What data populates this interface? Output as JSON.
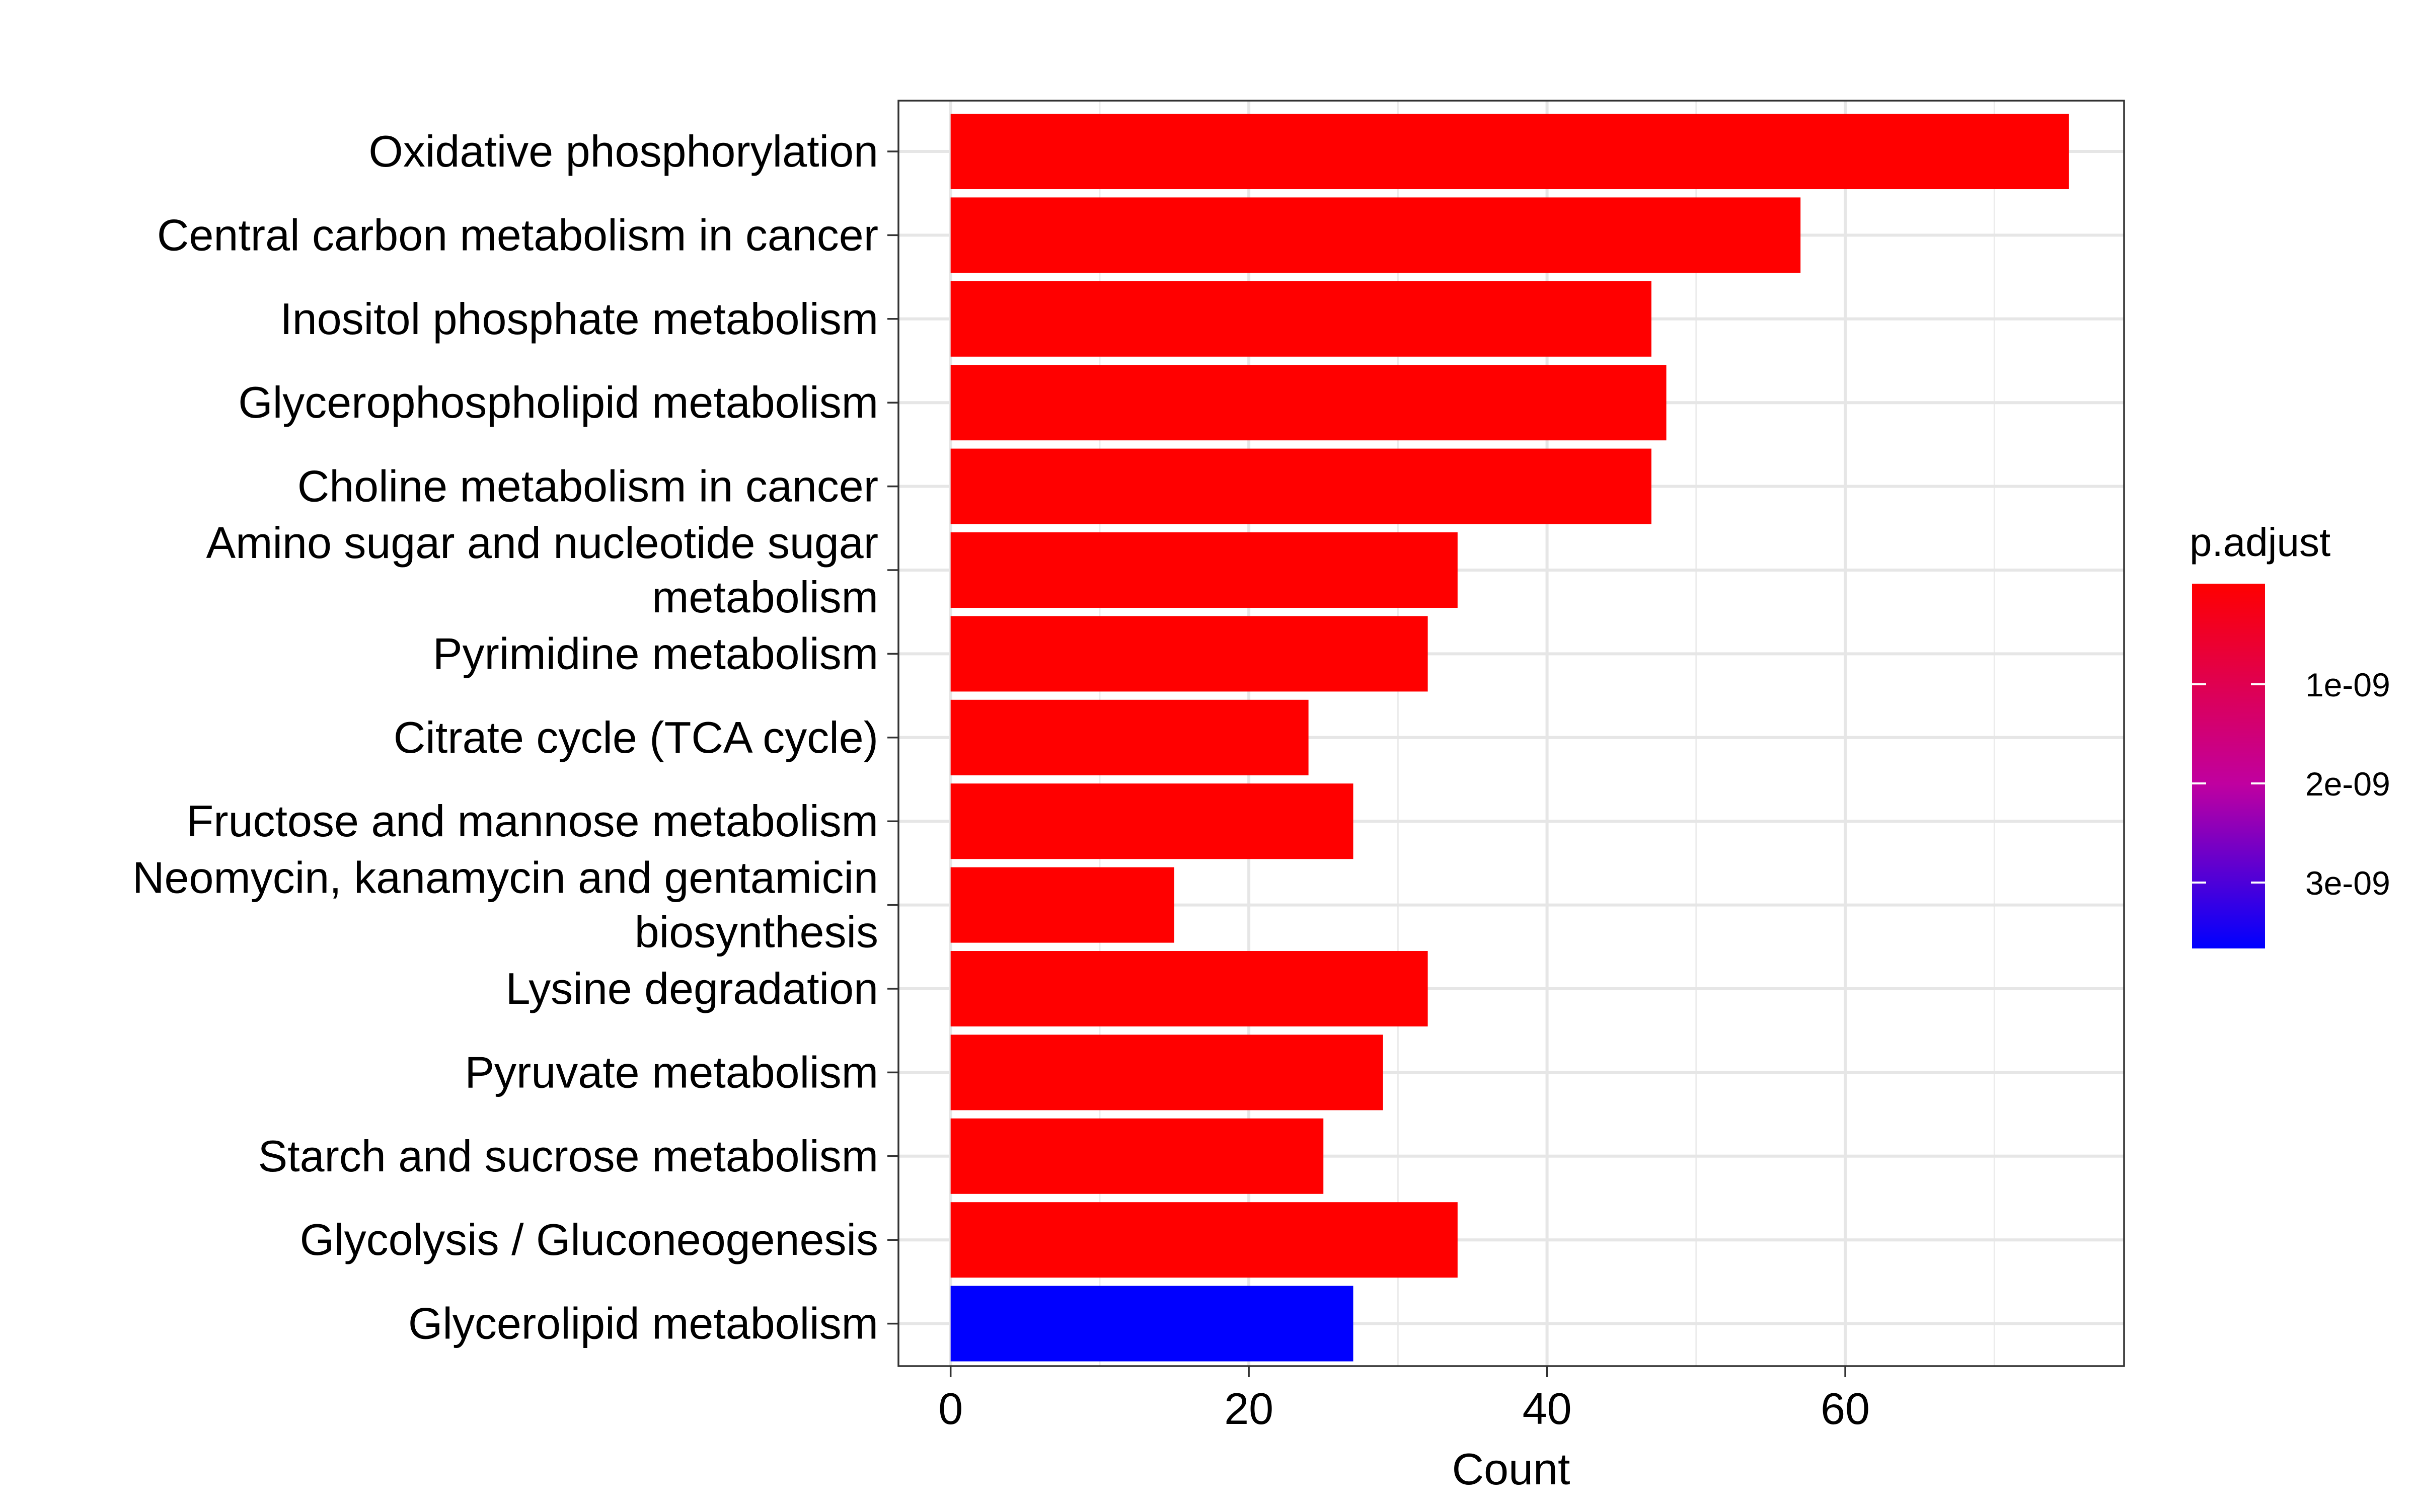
{
  "chart_data": {
    "type": "bar",
    "orientation": "horizontal",
    "categories": [
      "Oxidative phosphorylation",
      "Central carbon metabolism in cancer",
      "Inositol phosphate metabolism",
      "Glycerophospholipid metabolism",
      "Choline metabolism in cancer",
      "Amino sugar and nucleotide sugar metabolism",
      "Pyrimidine metabolism",
      "Citrate cycle (TCA cycle)",
      "Fructose and mannose metabolism",
      "Neomycin, kanamycin and gentamicin biosynthesis",
      "Lysine degradation",
      "Pyruvate metabolism",
      "Starch and sucrose metabolism",
      "Glycolysis / Gluconeogenesis",
      "Glycerolipid metabolism"
    ],
    "category_label_lines": [
      [
        "Oxidative phosphorylation"
      ],
      [
        "Central carbon metabolism in cancer"
      ],
      [
        "Inositol phosphate metabolism"
      ],
      [
        "Glycerophospholipid metabolism"
      ],
      [
        "Choline metabolism in cancer"
      ],
      [
        "Amino sugar and nucleotide sugar",
        "metabolism"
      ],
      [
        "Pyrimidine metabolism"
      ],
      [
        "Citrate cycle (TCA cycle)"
      ],
      [
        "Fructose and mannose metabolism"
      ],
      [
        "Neomycin, kanamycin and gentamicin",
        "biosynthesis"
      ],
      [
        "Lysine degradation"
      ],
      [
        "Pyruvate metabolism"
      ],
      [
        "Starch and sucrose metabolism"
      ],
      [
        "Glycolysis / Gluconeogenesis"
      ],
      [
        "Glycerolipid metabolism"
      ]
    ],
    "values": [
      75,
      57,
      47,
      48,
      47,
      34,
      32,
      24,
      27,
      15,
      32,
      29,
      25,
      34,
      27
    ],
    "bar_colors": [
      "#FF0000",
      "#FF0000",
      "#FF0000",
      "#FF0000",
      "#FF0000",
      "#FF0000",
      "#FF0000",
      "#FF0000",
      "#FF0000",
      "#FF0000",
      "#FF0000",
      "#FF0000",
      "#FF0000",
      "#FF0000",
      "#0000FF"
    ],
    "xlabel": "Count",
    "ylabel": "",
    "xlim": [
      -3.5,
      78.7
    ],
    "xticks": [
      0,
      20,
      40,
      60
    ],
    "xtick_labels": [
      "0",
      "20",
      "40",
      "60"
    ],
    "x_minor_gridlines": [
      10,
      30,
      50,
      70
    ],
    "grid": true,
    "legend": {
      "title": "p.adjust",
      "placement": "right",
      "type": "colorbar",
      "gradient_top": "#FF0000",
      "gradient_mid": "#C000A0",
      "gradient_bottom": "#0000FF",
      "tick_labels": [
        "1e-09",
        "2e-09",
        "3e-09"
      ]
    }
  }
}
